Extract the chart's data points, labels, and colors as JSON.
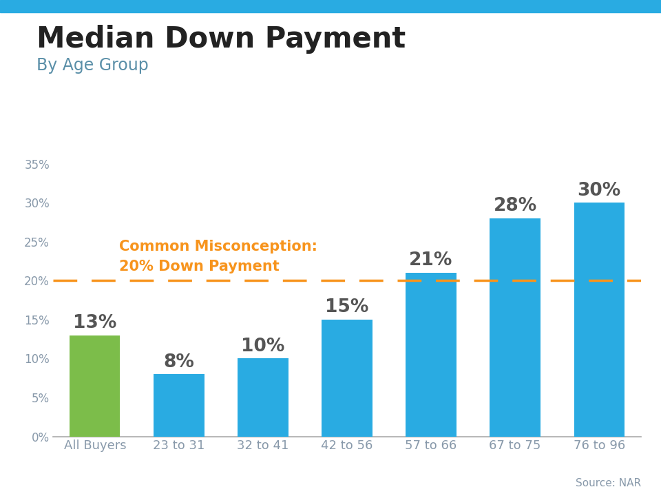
{
  "title": "Median Down Payment",
  "subtitle": "By Age Group",
  "categories": [
    "All Buyers",
    "23 to 31",
    "32 to 41",
    "42 to 56",
    "57 to 66",
    "67 to 75",
    "76 to 96"
  ],
  "values": [
    13,
    8,
    10,
    15,
    21,
    28,
    30
  ],
  "bar_colors": [
    "#7cbd4a",
    "#29abe2",
    "#29abe2",
    "#29abe2",
    "#29abe2",
    "#29abe2",
    "#29abe2"
  ],
  "ylim": [
    0,
    35
  ],
  "yticks": [
    0,
    5,
    10,
    15,
    20,
    25,
    30,
    35
  ],
  "ytick_labels": [
    "0%",
    "5%",
    "10%",
    "15%",
    "20%",
    "25%",
    "30%",
    "35%"
  ],
  "reference_line_y": 20,
  "reference_line_color": "#f7941d",
  "reference_label_line1": "Common Misconception:",
  "reference_label_line2": "20% Down Payment",
  "reference_label_color": "#f7941d",
  "source_text": "Source: NAR",
  "title_color": "#222222",
  "subtitle_color": "#5a8fa8",
  "tick_label_color": "#8899aa",
  "bar_label_color": "#555555",
  "title_fontsize": 30,
  "subtitle_fontsize": 17,
  "bar_label_fontsize": 19,
  "ref_label_fontsize": 15,
  "tick_fontsize": 12,
  "xtick_fontsize": 13,
  "source_fontsize": 11,
  "top_stripe_color": "#29abe2",
  "background_color": "#ffffff"
}
